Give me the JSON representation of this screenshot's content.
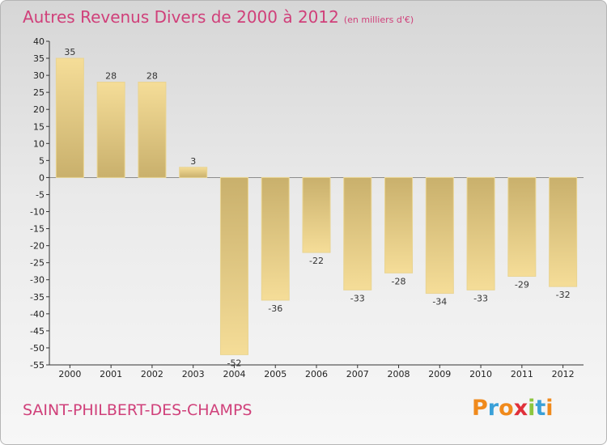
{
  "header": {
    "title": "Autres Revenus Divers de 2000 à 2012",
    "subtitle": "(en milliers d'€)"
  },
  "footer": {
    "commune": "SAINT-PHILBERT-DES-CHAMPS",
    "logo": [
      "P",
      "r",
      "o",
      "x",
      "i",
      "t",
      "i"
    ],
    "logo_colors": [
      "#f08a1c",
      "#3aa0d8",
      "#f08a1c",
      "#e0303a",
      "#8cc63f",
      "#3aa0d8",
      "#f08a1c"
    ]
  },
  "colors": {
    "title": "#d0407a",
    "bar_dark": "#c9b06c",
    "bar_light": "#f5dd98"
  },
  "chart_data": {
    "type": "bar",
    "title": "Autres Revenus Divers de 2000 à 2012",
    "subtitle": "(en milliers d'€)",
    "categories": [
      "2000",
      "2001",
      "2002",
      "2003",
      "2004",
      "2005",
      "2006",
      "2007",
      "2008",
      "2009",
      "2010",
      "2011",
      "2012"
    ],
    "values": [
      35,
      28,
      28,
      3,
      -52,
      -36,
      -22,
      -33,
      -28,
      -34,
      -33,
      -29,
      -32
    ],
    "ylim": [
      -55,
      40
    ],
    "yticks": [
      40,
      35,
      30,
      25,
      20,
      15,
      10,
      5,
      0,
      -5,
      -10,
      -15,
      -20,
      -25,
      -30,
      -35,
      -40,
      -45,
      -50,
      -55
    ],
    "grid": false,
    "legend": "none"
  }
}
